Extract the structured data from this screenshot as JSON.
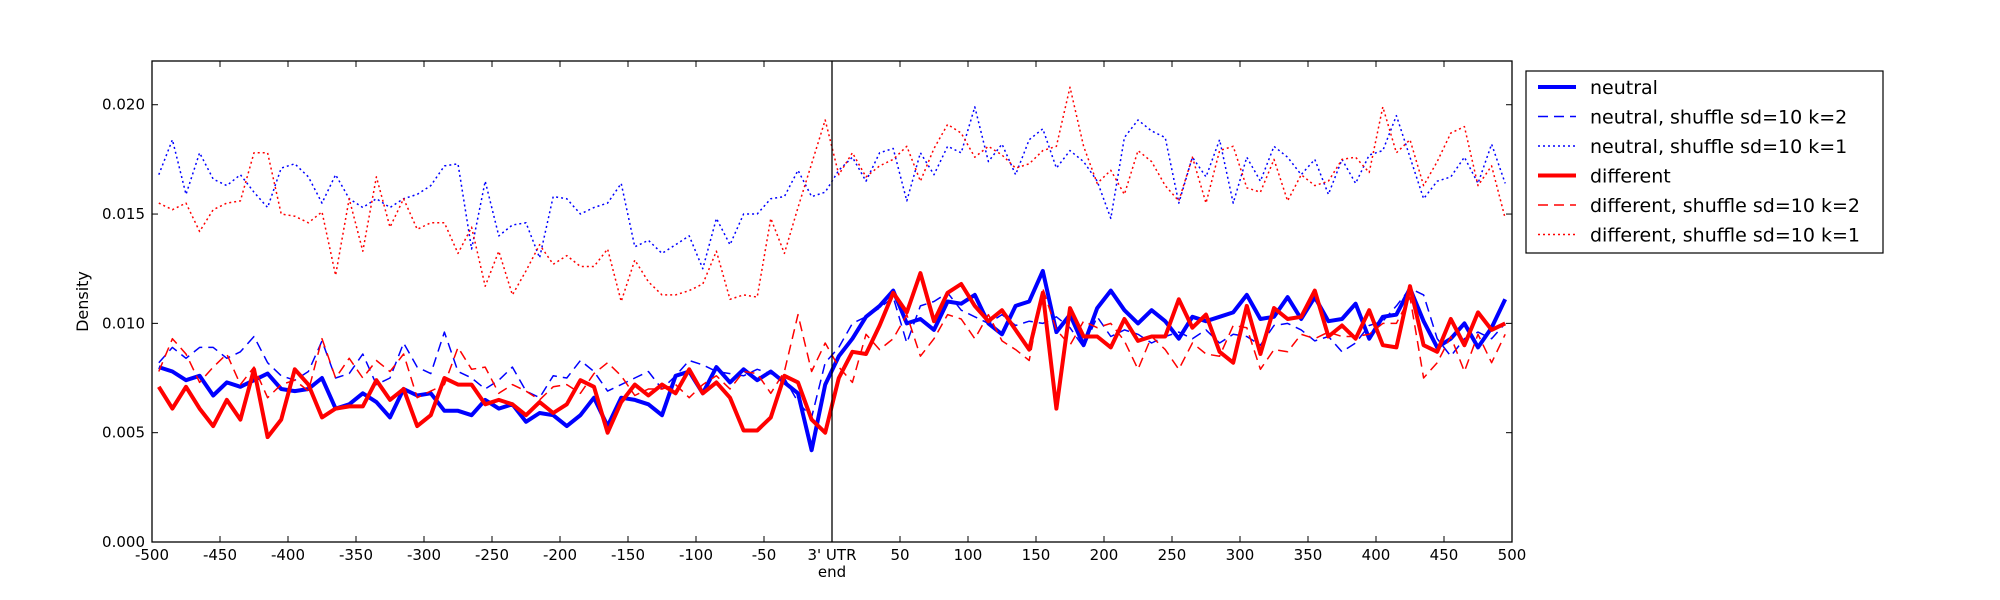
{
  "chart_data": {
    "type": "line",
    "ylabel": "Density",
    "xlabel": "",
    "xlim": [
      -500,
      500
    ],
    "ylim": [
      0,
      0.022
    ],
    "x_ticks": [
      -500,
      -450,
      -400,
      -350,
      -300,
      -250,
      -200,
      -150,
      -100,
      -50,
      0,
      50,
      100,
      150,
      200,
      250,
      300,
      350,
      400,
      450,
      500
    ],
    "x_tick_labels": [
      "-500",
      "-450",
      "-400",
      "-350",
      "-300",
      "-250",
      "-200",
      "-150",
      "-100",
      "-50",
      "3' UTR\nend",
      "50",
      "100",
      "150",
      "200",
      "250",
      "300",
      "350",
      "400",
      "450",
      "500"
    ],
    "y_ticks": [
      0,
      0.005,
      0.01,
      0.015,
      0.02
    ],
    "y_tick_labels": [
      "0.000",
      "0.005",
      "0.010",
      "0.015",
      "0.020"
    ],
    "vertical_line_at": 0,
    "grid": false,
    "legend_position": "outside-right-top",
    "x": [
      -495,
      -485,
      -475,
      -465,
      -455,
      -445,
      -435,
      -425,
      -415,
      -405,
      -395,
      -385,
      -375,
      -365,
      -355,
      -345,
      -335,
      -325,
      -315,
      -305,
      -295,
      -285,
      -275,
      -265,
      -255,
      -245,
      -235,
      -225,
      -215,
      -205,
      -195,
      -185,
      -175,
      -165,
      -155,
      -145,
      -135,
      -125,
      -115,
      -105,
      -95,
      -85,
      -75,
      -65,
      -55,
      -45,
      -35,
      -25,
      -15,
      -5,
      5,
      15,
      25,
      35,
      45,
      55,
      65,
      75,
      85,
      95,
      105,
      115,
      125,
      135,
      145,
      155,
      165,
      175,
      185,
      195,
      205,
      215,
      225,
      235,
      245,
      255,
      265,
      275,
      285,
      295,
      305,
      315,
      325,
      335,
      345,
      355,
      365,
      375,
      385,
      395,
      405,
      415,
      425,
      435,
      445,
      455,
      465,
      475,
      485,
      495
    ],
    "series": [
      {
        "name": "neutral",
        "color": "#0000ff",
        "style": "solid",
        "width": 4,
        "values": [
          0.008,
          0.0078,
          0.0074,
          0.0076,
          0.0067,
          0.0073,
          0.0071,
          0.0074,
          0.0077,
          0.007,
          0.0069,
          0.007,
          0.0075,
          0.0061,
          0.0063,
          0.0068,
          0.0064,
          0.0057,
          0.007,
          0.0067,
          0.0068,
          0.006,
          0.006,
          0.0058,
          0.0065,
          0.0061,
          0.0063,
          0.0055,
          0.0059,
          0.0058,
          0.0053,
          0.0058,
          0.0066,
          0.0053,
          0.0066,
          0.0065,
          0.0063,
          0.0058,
          0.0076,
          0.0078,
          0.0068,
          0.008,
          0.0073,
          0.0079,
          0.0074,
          0.0078,
          0.0073,
          0.0068,
          0.0042,
          0.0072,
          0.0085,
          0.0093,
          0.0103,
          0.0108,
          0.0115,
          0.01,
          0.0102,
          0.0097,
          0.011,
          0.0109,
          0.0113,
          0.01,
          0.0095,
          0.0108,
          0.011,
          0.0124,
          0.0096,
          0.0104,
          0.009,
          0.0107,
          0.0115,
          0.0106,
          0.01,
          0.0106,
          0.0101,
          0.0093,
          0.0103,
          0.0101,
          0.0103,
          0.0105,
          0.0113,
          0.0102,
          0.0103,
          0.0112,
          0.0102,
          0.0112,
          0.0101,
          0.0102,
          0.0109,
          0.0093,
          0.0103,
          0.0104,
          0.0116,
          0.0101,
          0.0089,
          0.0093,
          0.01,
          0.0089,
          0.0098,
          0.0111
        ]
      },
      {
        "name": "neutral, shuffle sd=10 k=2",
        "color": "#0000ff",
        "style": "dashed",
        "width": 1.5,
        "values": [
          0.0082,
          0.0089,
          0.0084,
          0.0089,
          0.0089,
          0.0084,
          0.0087,
          0.0094,
          0.0082,
          0.0076,
          0.0074,
          0.0078,
          0.0092,
          0.0075,
          0.0077,
          0.0086,
          0.0072,
          0.0075,
          0.0091,
          0.008,
          0.0077,
          0.0096,
          0.0078,
          0.0075,
          0.007,
          0.0074,
          0.008,
          0.0069,
          0.0066,
          0.0076,
          0.0075,
          0.0083,
          0.0078,
          0.0069,
          0.0072,
          0.0075,
          0.0078,
          0.007,
          0.0076,
          0.0083,
          0.0081,
          0.0078,
          0.0077,
          0.0076,
          0.0079,
          0.0077,
          0.0075,
          0.0064,
          0.0057,
          0.0082,
          0.0089,
          0.01,
          0.0103,
          0.0107,
          0.0112,
          0.0091,
          0.0108,
          0.011,
          0.0114,
          0.0106,
          0.0103,
          0.01,
          0.0104,
          0.0099,
          0.0101,
          0.01,
          0.0103,
          0.0098,
          0.0089,
          0.0103,
          0.0094,
          0.0097,
          0.0095,
          0.0091,
          0.0094,
          0.0096,
          0.0093,
          0.0097,
          0.0091,
          0.0095,
          0.0094,
          0.009,
          0.0099,
          0.01,
          0.0097,
          0.0092,
          0.0094,
          0.0087,
          0.0091,
          0.0099,
          0.0101,
          0.0108,
          0.0116,
          0.0113,
          0.0093,
          0.0085,
          0.0093,
          0.0096,
          0.0093,
          0.01
        ]
      },
      {
        "name": "neutral, shuffle sd=10 k=1",
        "color": "#0000ff",
        "style": "dotted",
        "width": 1.5,
        "values": [
          0.0168,
          0.0184,
          0.0159,
          0.0178,
          0.0166,
          0.0163,
          0.0168,
          0.016,
          0.0153,
          0.0171,
          0.0173,
          0.0167,
          0.0155,
          0.0168,
          0.0157,
          0.0153,
          0.0157,
          0.0153,
          0.0157,
          0.0159,
          0.0163,
          0.0172,
          0.0173,
          0.0134,
          0.0165,
          0.014,
          0.0145,
          0.0146,
          0.013,
          0.0158,
          0.0157,
          0.015,
          0.0153,
          0.0155,
          0.0164,
          0.0135,
          0.0138,
          0.0132,
          0.0136,
          0.014,
          0.0125,
          0.0148,
          0.0136,
          0.015,
          0.015,
          0.0157,
          0.0158,
          0.017,
          0.0158,
          0.016,
          0.017,
          0.0176,
          0.0165,
          0.0178,
          0.018,
          0.0156,
          0.0178,
          0.0168,
          0.0181,
          0.0178,
          0.0199,
          0.0174,
          0.0182,
          0.0168,
          0.0184,
          0.0189,
          0.0171,
          0.0179,
          0.0174,
          0.0165,
          0.0148,
          0.0185,
          0.0193,
          0.0188,
          0.0185,
          0.0155,
          0.0176,
          0.0167,
          0.0184,
          0.0155,
          0.0176,
          0.0165,
          0.0181,
          0.0176,
          0.0168,
          0.0175,
          0.0159,
          0.0175,
          0.0164,
          0.0177,
          0.0179,
          0.0195,
          0.0176,
          0.0157,
          0.0165,
          0.0167,
          0.0176,
          0.0164,
          0.0182,
          0.0164
        ]
      },
      {
        "name": "different",
        "color": "#ff0000",
        "style": "solid",
        "width": 4,
        "values": [
          0.0071,
          0.0061,
          0.0071,
          0.0061,
          0.0053,
          0.0065,
          0.0056,
          0.0079,
          0.0048,
          0.0056,
          0.0079,
          0.0072,
          0.0057,
          0.0061,
          0.0062,
          0.0062,
          0.0074,
          0.0065,
          0.007,
          0.0053,
          0.0058,
          0.0075,
          0.0072,
          0.0072,
          0.0063,
          0.0065,
          0.0063,
          0.0058,
          0.0064,
          0.0059,
          0.0063,
          0.0074,
          0.0071,
          0.005,
          0.0064,
          0.0072,
          0.0067,
          0.0072,
          0.0068,
          0.0079,
          0.0068,
          0.0073,
          0.0066,
          0.0051,
          0.0051,
          0.0057,
          0.0076,
          0.0073,
          0.0056,
          0.005,
          0.0075,
          0.0087,
          0.0086,
          0.0099,
          0.0114,
          0.0105,
          0.0123,
          0.0101,
          0.0114,
          0.0118,
          0.0108,
          0.0101,
          0.0106,
          0.0097,
          0.0088,
          0.0114,
          0.0061,
          0.0107,
          0.0094,
          0.0094,
          0.0089,
          0.0102,
          0.0092,
          0.0094,
          0.0094,
          0.0111,
          0.0098,
          0.0104,
          0.0087,
          0.0082,
          0.0108,
          0.0086,
          0.0107,
          0.0102,
          0.0103,
          0.0115,
          0.0094,
          0.0099,
          0.0093,
          0.0106,
          0.009,
          0.0089,
          0.0117,
          0.009,
          0.0087,
          0.0102,
          0.009,
          0.0105,
          0.0097,
          0.01
        ]
      },
      {
        "name": "different, shuffle sd=10 k=2",
        "color": "#ff0000",
        "style": "dashed",
        "width": 1.5,
        "values": [
          0.0078,
          0.0093,
          0.0086,
          0.0073,
          0.008,
          0.0086,
          0.0072,
          0.008,
          0.0066,
          0.0072,
          0.0074,
          0.0069,
          0.0093,
          0.0075,
          0.0084,
          0.0075,
          0.0083,
          0.0078,
          0.0086,
          0.0066,
          0.0069,
          0.0072,
          0.0089,
          0.0079,
          0.008,
          0.0068,
          0.0072,
          0.0069,
          0.0065,
          0.0071,
          0.0072,
          0.0068,
          0.0077,
          0.0082,
          0.0076,
          0.0067,
          0.007,
          0.007,
          0.0072,
          0.0066,
          0.0072,
          0.0076,
          0.007,
          0.0078,
          0.0077,
          0.0068,
          0.0078,
          0.0104,
          0.0078,
          0.0091,
          0.008,
          0.0073,
          0.0095,
          0.0088,
          0.0093,
          0.0104,
          0.0085,
          0.0093,
          0.0104,
          0.0102,
          0.0093,
          0.0104,
          0.0092,
          0.0088,
          0.0083,
          0.0116,
          0.0097,
          0.009,
          0.0101,
          0.0098,
          0.01,
          0.0092,
          0.0079,
          0.0094,
          0.0088,
          0.0079,
          0.0091,
          0.0086,
          0.0085,
          0.0099,
          0.0098,
          0.0079,
          0.0088,
          0.0087,
          0.0095,
          0.0093,
          0.0096,
          0.0094,
          0.0094,
          0.0095,
          0.01,
          0.01,
          0.0112,
          0.0075,
          0.0082,
          0.0094,
          0.0078,
          0.0095,
          0.0082,
          0.0095
        ]
      },
      {
        "name": "different, shuffle sd=10 k=1",
        "color": "#ff0000",
        "style": "dotted",
        "width": 1.5,
        "values": [
          0.0155,
          0.0152,
          0.0155,
          0.0142,
          0.0152,
          0.0155,
          0.0156,
          0.0178,
          0.0178,
          0.015,
          0.0149,
          0.0146,
          0.0151,
          0.0122,
          0.0157,
          0.0133,
          0.0167,
          0.0144,
          0.0157,
          0.0143,
          0.0146,
          0.0146,
          0.0132,
          0.0144,
          0.0117,
          0.0133,
          0.0113,
          0.0124,
          0.0136,
          0.0127,
          0.0131,
          0.0126,
          0.0126,
          0.0134,
          0.011,
          0.0129,
          0.0119,
          0.0113,
          0.0113,
          0.0115,
          0.0118,
          0.0133,
          0.0111,
          0.0113,
          0.0112,
          0.0148,
          0.0132,
          0.0153,
          0.0173,
          0.0193,
          0.0168,
          0.0178,
          0.0167,
          0.0172,
          0.0175,
          0.0181,
          0.0165,
          0.018,
          0.0191,
          0.0187,
          0.0176,
          0.0181,
          0.0177,
          0.0171,
          0.0173,
          0.0179,
          0.0181,
          0.0208,
          0.0181,
          0.0164,
          0.017,
          0.0159,
          0.0179,
          0.0174,
          0.0163,
          0.0156,
          0.0176,
          0.0155,
          0.0179,
          0.0181,
          0.0162,
          0.016,
          0.0175,
          0.0156,
          0.0168,
          0.0163,
          0.0165,
          0.0175,
          0.0176,
          0.0169,
          0.0199,
          0.0178,
          0.0184,
          0.0163,
          0.0174,
          0.0187,
          0.019,
          0.0163,
          0.0172,
          0.0148
        ]
      }
    ]
  }
}
